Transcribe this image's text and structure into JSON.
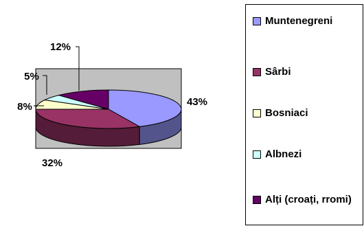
{
  "chart_data": {
    "type": "pie",
    "style": "3d",
    "slices": [
      {
        "label": "Muntenegreni",
        "value": 43,
        "display": "43%",
        "color": "#9999FF"
      },
      {
        "label": "Sârbi",
        "value": 32,
        "display": "32%",
        "color": "#993366"
      },
      {
        "label": "Bosniaci",
        "value": 8,
        "display": "8%",
        "color": "#FFFFCC"
      },
      {
        "label": "Albnezi",
        "value": 5,
        "display": "5%",
        "color": "#CCFFFF"
      },
      {
        "label": "Alți (croați, rromi)",
        "value": 12,
        "display": "12%",
        "color": "#660066"
      }
    ],
    "plot_area_color": "#C0C0C0",
    "legend_position": "right"
  }
}
